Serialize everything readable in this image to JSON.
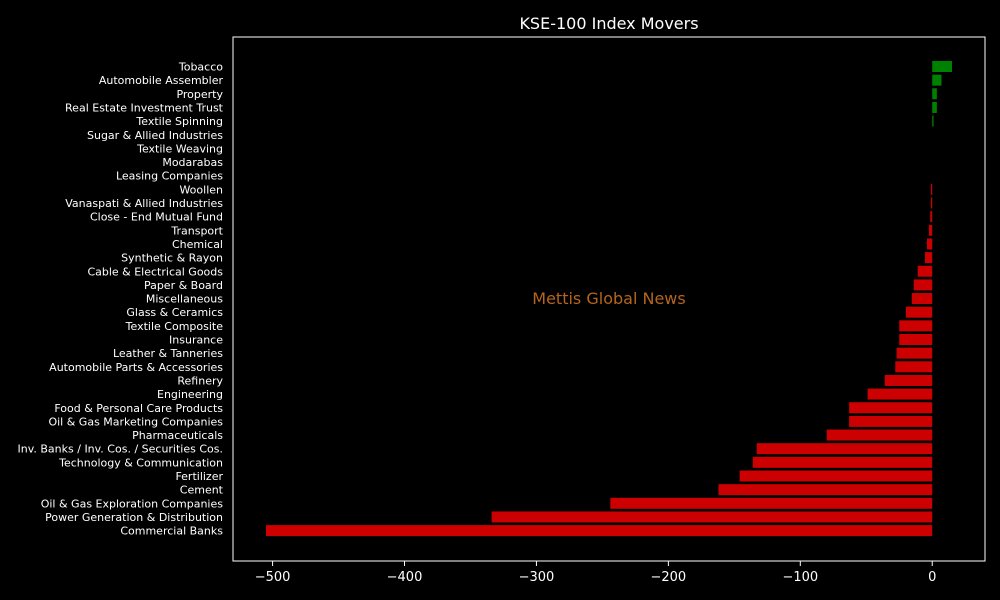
{
  "chart_data": {
    "type": "bar",
    "orientation": "horizontal",
    "title": "KSE-100 Index Movers",
    "xlabel": "",
    "ylabel": "",
    "xlim": [
      -530,
      40
    ],
    "xticks": [
      -500,
      -400,
      -300,
      -200,
      -100,
      0
    ],
    "xtick_labels": [
      "−500",
      "−400",
      "−300",
      "−200",
      "−100",
      "0"
    ],
    "grid": false,
    "watermark": "Mettis Global News",
    "colors": {
      "positive": "#008000",
      "negative": "#cc0000",
      "background": "#000000",
      "text": "#ffffff",
      "watermark": "#b5651d"
    },
    "categories": [
      "Tobacco",
      "Automobile Assembler",
      "Property",
      "Real Estate Investment Trust",
      "Textile Spinning",
      "Sugar & Allied Industries",
      "Textile Weaving",
      "Modarabas",
      "Leasing Companies",
      "Woollen",
      "Vanaspati & Allied Industries",
      "Close - End Mutual Fund",
      "Transport",
      "Chemical",
      "Synthetic & Rayon",
      "Cable & Electrical Goods",
      "Paper & Board",
      "Miscellaneous",
      "Glass & Ceramics",
      "Textile Composite",
      "Insurance",
      "Leather & Tanneries",
      "Automobile Parts & Accessories",
      "Refinery",
      "Engineering",
      "Food & Personal Care Products",
      "Oil & Gas Marketing Companies",
      "Pharmaceuticals",
      "Inv. Banks / Inv. Cos. / Securities Cos.",
      "Technology & Communication",
      "Fertilizer",
      "Cement",
      "Oil & Gas Exploration Companies",
      "Power Generation & Distribution",
      "Commercial Banks"
    ],
    "values": [
      15,
      7,
      3.5,
      3.5,
      1,
      0,
      0,
      0,
      0,
      -1,
      -1,
      -1.5,
      -2.5,
      -4,
      -5.5,
      -11,
      -14,
      -15.5,
      -20,
      -25,
      -25,
      -27,
      -28,
      -36,
      -49,
      -63,
      -63,
      -80,
      -133,
      -136,
      -146,
      -162,
      -244,
      -334,
      -505
    ]
  }
}
